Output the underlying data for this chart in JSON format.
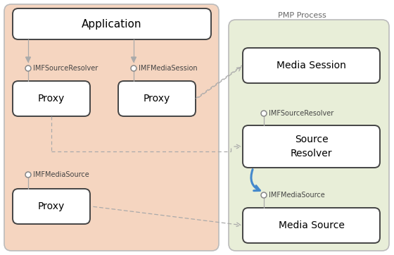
{
  "bg_color": "#ffffff",
  "left_panel_color": "#f5d5c0",
  "right_panel_color": "#e8eed8",
  "panel_border": "#bbbbbb",
  "box_border": "#444444",
  "arrow_color": "#999999",
  "blue_arrow_color": "#4488cc",
  "pmp_label": "PMP Process",
  "app_label": "Application",
  "proxy1_label": "Proxy",
  "proxy2_label": "Proxy",
  "proxy3_label": "Proxy",
  "ms_label": "Media Session",
  "sr_label": "Source\nResolver",
  "msrc_label": "Media Source",
  "iface1": "IMFSourceResolver",
  "iface2": "IMFMediaSession",
  "iface3": "IMFMediaSource",
  "iface4": "IMFSourceResolver",
  "iface5": "IMFMediaSource"
}
